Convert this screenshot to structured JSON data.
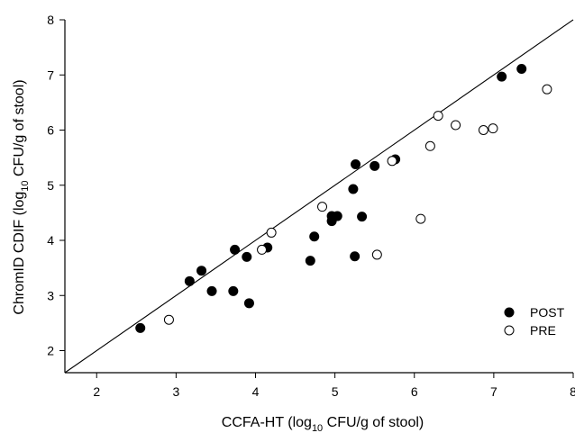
{
  "chart_data": {
    "type": "scatter",
    "xlabel": {
      "pre": "CCFA-HT (log",
      "sub": "10",
      "post": " CFU/g of stool)"
    },
    "ylabel": {
      "pre": "ChromID CDIF (log",
      "sub": "10",
      "post": " CFU/g of stool)"
    },
    "xlim": [
      1.6,
      8
    ],
    "ylim": [
      1.6,
      8
    ],
    "xticks": [
      "2",
      "3",
      "4",
      "5",
      "6",
      "7",
      "8"
    ],
    "yticks": [
      "2",
      "3",
      "4",
      "5",
      "6",
      "7",
      "8"
    ],
    "legend": {
      "placement": "bottom-right",
      "entries": [
        "POST",
        "PRE"
      ]
    },
    "reference_line": {
      "label": "",
      "x": [
        1.6,
        8
      ],
      "y": [
        1.6,
        8
      ]
    },
    "series": [
      {
        "name": "POST",
        "marker": "filled-circle",
        "points": [
          [
            2.55,
            2.41
          ],
          [
            3.17,
            3.26
          ],
          [
            3.32,
            3.45
          ],
          [
            3.45,
            3.08
          ],
          [
            3.72,
            3.08
          ],
          [
            3.74,
            3.83
          ],
          [
            3.89,
            3.7
          ],
          [
            3.92,
            2.86
          ],
          [
            4.15,
            3.87
          ],
          [
            4.69,
            3.63
          ],
          [
            4.74,
            4.07
          ],
          [
            4.96,
            4.44
          ],
          [
            4.96,
            4.35
          ],
          [
            5.03,
            4.44
          ],
          [
            5.23,
            4.93
          ],
          [
            5.25,
            3.71
          ],
          [
            5.26,
            5.38
          ],
          [
            5.34,
            4.43
          ],
          [
            5.5,
            5.35
          ],
          [
            5.76,
            5.47
          ],
          [
            7.1,
            6.97
          ],
          [
            7.35,
            7.11
          ]
        ]
      },
      {
        "name": "PRE",
        "marker": "open-circle",
        "points": [
          [
            2.91,
            2.56
          ],
          [
            4.08,
            3.83
          ],
          [
            4.2,
            4.14
          ],
          [
            4.84,
            4.61
          ],
          [
            5.53,
            3.74
          ],
          [
            5.72,
            5.44
          ],
          [
            6.08,
            4.39
          ],
          [
            6.2,
            5.71
          ],
          [
            6.3,
            6.26
          ],
          [
            6.52,
            6.09
          ],
          [
            6.87,
            6.0
          ],
          [
            6.99,
            6.03
          ],
          [
            7.67,
            6.74
          ]
        ]
      }
    ]
  }
}
